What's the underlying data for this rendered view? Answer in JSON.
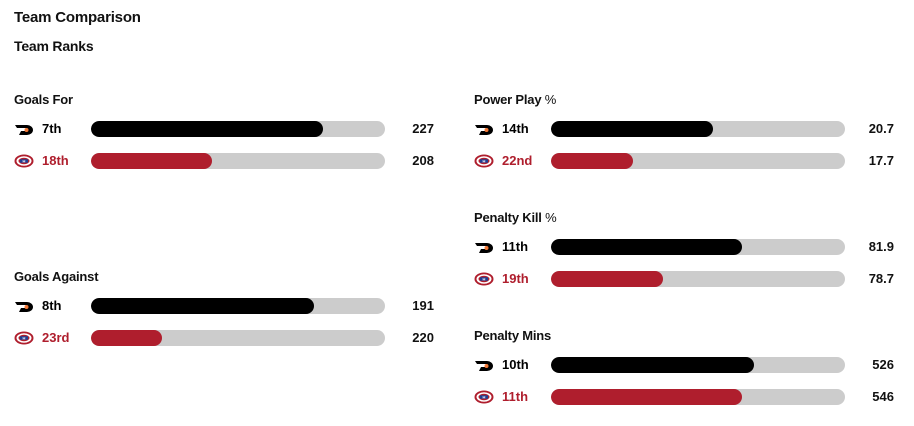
{
  "header": {
    "title": "Team Comparison",
    "subtitle": "Team Ranks"
  },
  "teams": {
    "home": {
      "logo_icon": "flyers-logo-icon",
      "color": "#000000"
    },
    "away": {
      "logo_icon": "canadiens-logo-icon",
      "color": "#af1e2d"
    }
  },
  "stats": {
    "goals_for": {
      "label": "Goals For",
      "suffix": "",
      "home": {
        "rank": "7th",
        "value": "227",
        "fill_pct": 79
      },
      "away": {
        "rank": "18th",
        "value": "208",
        "fill_pct": 41
      }
    },
    "goals_against": {
      "label": "Goals Against",
      "suffix": "",
      "home": {
        "rank": "8th",
        "value": "191",
        "fill_pct": 76
      },
      "away": {
        "rank": "23rd",
        "value": "220",
        "fill_pct": 24
      }
    },
    "power_play": {
      "label": "Power Play",
      "suffix": "%",
      "home": {
        "rank": "14th",
        "value": "20.7",
        "fill_pct": 55
      },
      "away": {
        "rank": "22nd",
        "value": "17.7",
        "fill_pct": 28
      }
    },
    "penalty_kill": {
      "label": "Penalty Kill",
      "suffix": "%",
      "home": {
        "rank": "11th",
        "value": "81.9",
        "fill_pct": 65
      },
      "away": {
        "rank": "19th",
        "value": "78.7",
        "fill_pct": 38
      }
    },
    "penalty_mins": {
      "label": "Penalty Mins",
      "suffix": "",
      "home": {
        "rank": "10th",
        "value": "526",
        "fill_pct": 69
      },
      "away": {
        "rank": "11th",
        "value": "546",
        "fill_pct": 65
      }
    }
  }
}
